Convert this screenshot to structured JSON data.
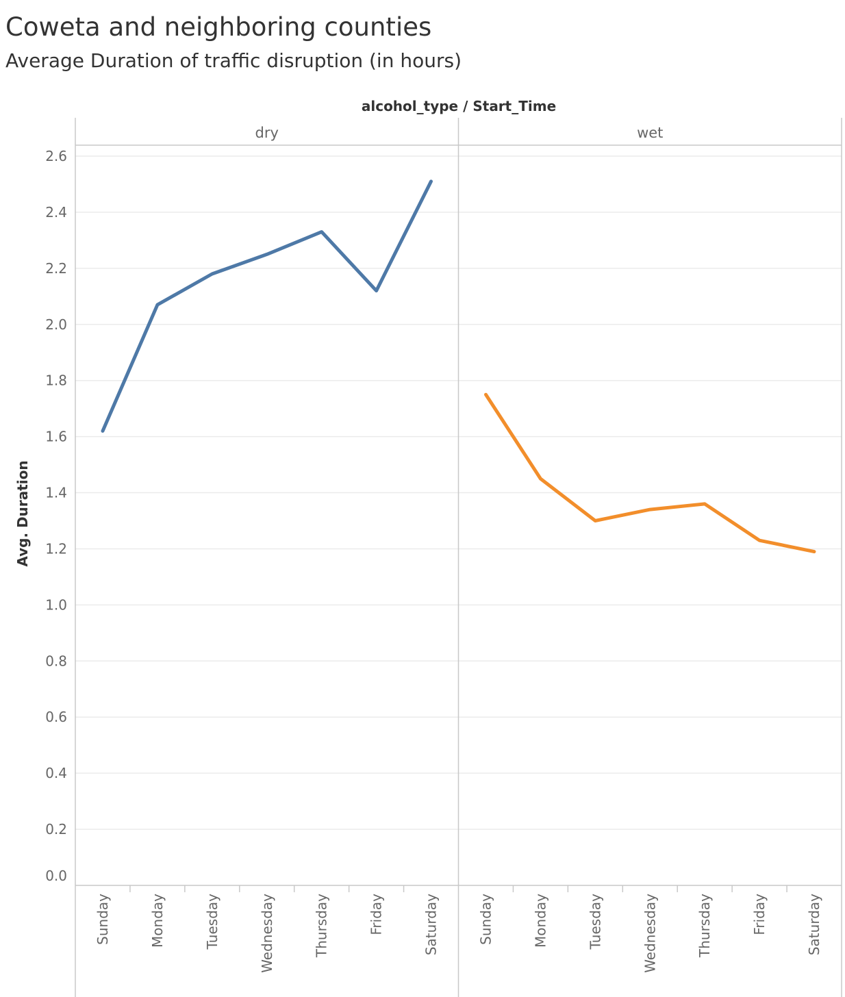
{
  "chart_data": {
    "type": "line",
    "title": "Coweta and neighboring counties",
    "subtitle": "Average Duration of traffic disruption (in hours)",
    "column_header": "alcohol_type / Start_Time",
    "ylabel": "Avg. Duration",
    "ylim": [
      0,
      2.6
    ],
    "yticks": [
      "0.0",
      "0.2",
      "0.4",
      "0.6",
      "0.8",
      "1.0",
      "1.2",
      "1.4",
      "1.6",
      "1.8",
      "2.0",
      "2.2",
      "2.4",
      "2.6"
    ],
    "categories": [
      "Sunday",
      "Monday",
      "Tuesday",
      "Wednesday",
      "Thursday",
      "Friday",
      "Saturday"
    ],
    "grid": true,
    "panels": [
      {
        "name": "dry",
        "color": "#4e79a7",
        "values": [
          1.62,
          2.07,
          2.18,
          2.25,
          2.33,
          2.12,
          2.51
        ]
      },
      {
        "name": "wet",
        "color": "#f28e2b",
        "values": [
          1.75,
          1.45,
          1.3,
          1.34,
          1.36,
          1.23,
          1.19
        ]
      }
    ]
  }
}
